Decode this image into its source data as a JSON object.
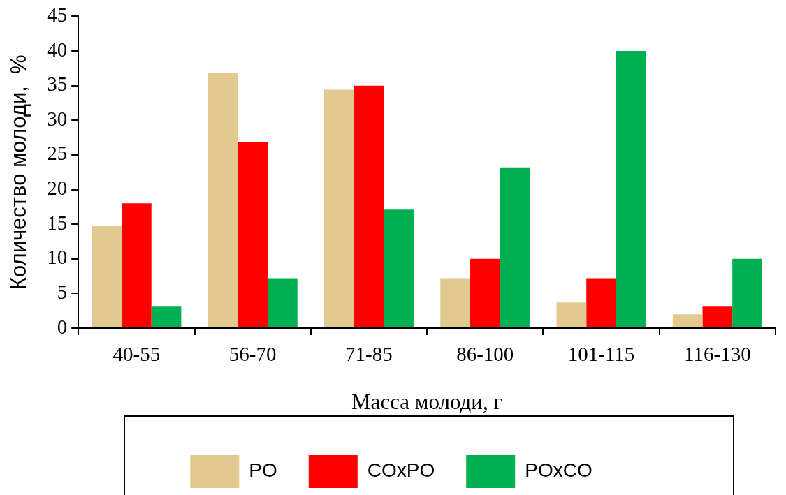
{
  "chart_data": {
    "type": "bar",
    "xlabel": "Масса молоди, г",
    "ylabel": "Количество молоди,  %",
    "categories": [
      "40-55",
      "56-70",
      "71-85",
      "86-100",
      "101-115",
      "116-130"
    ],
    "series": [
      {
        "name": "PO",
        "color": "#e2c98f",
        "values": [
          14.7,
          36.8,
          34.4,
          7.2,
          3.7,
          2.0
        ]
      },
      {
        "name": "COxPO",
        "color": "#ff0000",
        "values": [
          18.0,
          26.9,
          35.0,
          10.0,
          7.2,
          3.1
        ]
      },
      {
        "name": "POxCO",
        "color": "#00b050",
        "values": [
          3.1,
          7.2,
          17.1,
          23.2,
          40.0,
          10.0
        ]
      }
    ],
    "ylim": [
      0,
      45
    ],
    "yticks": [
      0,
      5,
      10,
      15,
      20,
      25,
      30,
      35,
      40,
      45
    ],
    "grid": false,
    "legend": "bottom"
  }
}
